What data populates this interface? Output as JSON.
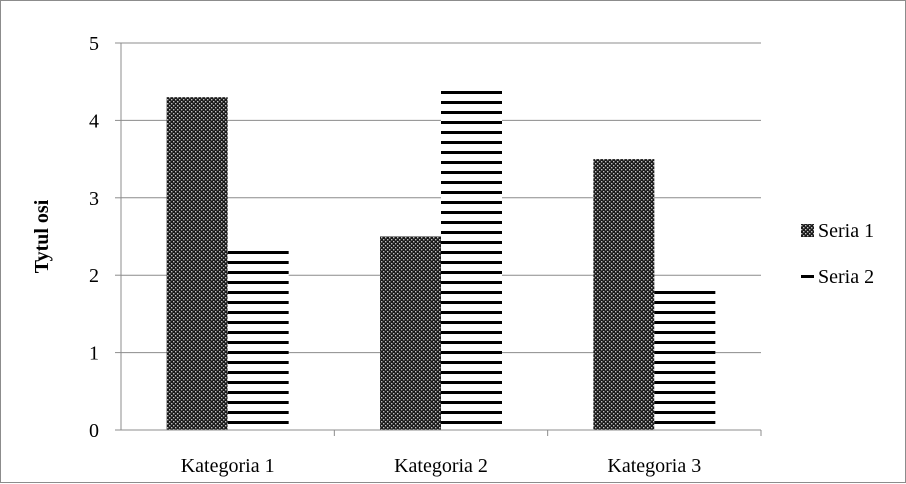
{
  "chart_data": {
    "type": "bar",
    "title": "",
    "xlabel": "",
    "ylabel": "Tytul osi",
    "categories": [
      "Kategoria 1",
      "Kategoria 2",
      "Kategoria 3"
    ],
    "series": [
      {
        "name": "Seria 1",
        "values": [
          4.3,
          2.5,
          3.5
        ],
        "pattern": "dotted-dark"
      },
      {
        "name": "Seria 2",
        "values": [
          2.4,
          4.4,
          1.8
        ],
        "pattern": "horizontal-lines"
      }
    ],
    "ylim": [
      0,
      5
    ],
    "yticks": [
      "0",
      "1",
      "2",
      "3",
      "4",
      "5"
    ],
    "grid": true,
    "legend_position": "right",
    "colors": {
      "bar_fill": "#1a1a1a",
      "line": "#000000",
      "grid": "#8c8c8c",
      "axis": "#8c8c8c"
    }
  }
}
